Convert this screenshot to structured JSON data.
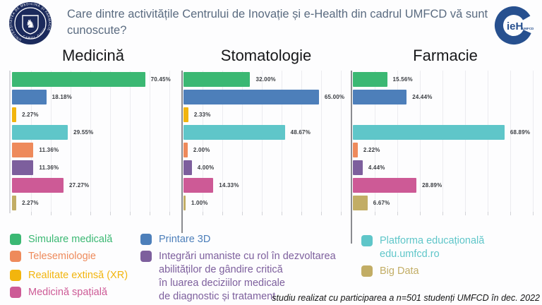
{
  "header": {
    "title": "Care dintre activitățile Centrului de Inovație și e-Health din cadrul UMFCD vă sunt cunoscute?",
    "logo_left": {
      "arc_top": "UNIVERSITATEA DE MEDICINĂ ȘI FARMACIE",
      "arc_bottom": "CAROL DAVILA"
    },
    "logo_right": {
      "text": "ieH",
      "suffix": "UMFCD"
    }
  },
  "palette": {
    "bars": [
      "#3bb873",
      "#4d7fba",
      "#f2b50d",
      "#5fc6c9",
      "#ee8a5b",
      "#7d5f9d",
      "#cd5a96",
      "#c2ad65"
    ],
    "seal_navy": "#1b2a5c",
    "cieh_blue": "#27508f",
    "title_slate": "#5a6b80",
    "grid": "#ececf0",
    "axis_gray": "#8a8b90"
  },
  "category_keys": [
    "simulare-medicala",
    "printare-3d",
    "realitate-extinsa-xr",
    "platforma-educationala",
    "telesemiologie",
    "integrari-umaniste",
    "medicina-spatiala",
    "big-data"
  ],
  "chart_data": [
    {
      "type": "bar",
      "orientation": "horizontal",
      "title": "Medicină",
      "categories": [
        "Simulare medicală",
        "Printare 3D",
        "Realitate extinsă (XR)",
        "Platforma educațională edu.umfcd.ro",
        "Telesemiologie",
        "Integrări umaniste cu rol în dezvoltarea abilităților de gândire critică în luarea deciziilor medicale de diagnostic și tratament",
        "Medicină spațială",
        "Big Data"
      ],
      "values": [
        70.45,
        18.18,
        2.27,
        29.55,
        11.36,
        11.36,
        27.27,
        2.27
      ],
      "labels": [
        "70.45%",
        "18.18%",
        "2.27%",
        "29.55%",
        "11.36%",
        "11.36%",
        "27.27%",
        "2.27%"
      ],
      "xlim": [
        0,
        80
      ],
      "grid": true
    },
    {
      "type": "bar",
      "orientation": "horizontal",
      "title": "Stomatologie",
      "categories": [
        "Simulare medicală",
        "Printare 3D",
        "Realitate extinsă (XR)",
        "Platforma educațională edu.umfcd.ro",
        "Telesemiologie",
        "Integrări umaniste cu rol în dezvoltarea abilităților de gândire critică în luarea deciziilor medicale de diagnostic și tratament",
        "Medicină spațială",
        "Big Data"
      ],
      "values": [
        32.0,
        65.0,
        2.33,
        48.67,
        2.0,
        4.0,
        14.33,
        1.0
      ],
      "labels": [
        "32.00%",
        "65.00%",
        "2.33%",
        "48.67%",
        "2.00%",
        "4.00%",
        "14.33%",
        "1.00%"
      ],
      "xlim": [
        0,
        75
      ],
      "grid": true
    },
    {
      "type": "bar",
      "orientation": "horizontal",
      "title": "Farmacie",
      "categories": [
        "Simulare medicală",
        "Printare 3D",
        "Realitate extinsă (XR)",
        "Platforma educațională edu.umfcd.ro",
        "Telesemiologie",
        "Integrări umaniste cu rol în dezvoltarea abilităților de gândire critică în luarea deciziilor medicale de diagnostic și tratament",
        "Medicină spațială",
        "Big Data"
      ],
      "values": [
        15.56,
        24.44,
        0,
        68.89,
        2.22,
        4.44,
        28.89,
        6.67
      ],
      "labels": [
        "15.56%",
        "24.44%",
        "",
        "68.89%",
        "2.22%",
        "4.44%",
        "28.89%",
        "6.67%"
      ],
      "xlim": [
        0,
        80
      ],
      "grid": true
    }
  ],
  "legend": {
    "columns": [
      {
        "items": [
          {
            "label": "Simulare medicală",
            "color": "#3bb873"
          },
          {
            "label": "Telesemiologie",
            "color": "#ee8a5b"
          },
          {
            "label": "Realitate extinsă (XR)",
            "color": "#f2b50d",
            "gap": true
          },
          {
            "label": "Medicină spațială",
            "color": "#cd5a96"
          }
        ]
      },
      {
        "items": [
          {
            "label": "Printare 3D",
            "color": "#4d7fba"
          },
          {
            "label": "Integrări umaniste cu rol în dezvoltarea\nabilităților de gândire critică\nîn luarea deciziilor medicale\nde diagnostic și tratament",
            "color": "#7d5f9d"
          }
        ]
      },
      {
        "items": [
          {
            "label": "Platforma educațională edu.umfcd.ro",
            "color": "#5fc6c9"
          },
          {
            "label": "Big Data",
            "color": "#c2ad65"
          }
        ]
      }
    ]
  },
  "footnote": "studiu realizat cu participarea a n=501 studenți UMFCD în dec. 2022"
}
